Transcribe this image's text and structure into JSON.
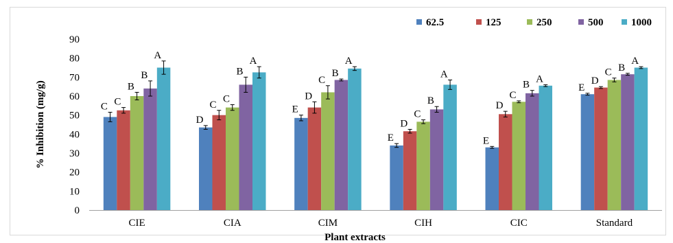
{
  "chart_data": {
    "type": "bar",
    "xlabel": "Plant extracts",
    "ylabel": "% Inhibition (mg/g)",
    "ylim": [
      0,
      90
    ],
    "yticks": [
      "0",
      "10",
      "20",
      "30",
      "40",
      "50",
      "60",
      "70",
      "80",
      "90"
    ],
    "categories": [
      "CIE",
      "CIA",
      "CIM",
      "CIH",
      "CIC",
      "Standard"
    ],
    "legend_position": "top-right",
    "grid": false,
    "series": [
      {
        "name": "62.5",
        "color": "#4f81bd",
        "values": [
          49,
          43.5,
          48.5,
          34,
          33,
          61
        ],
        "errors": [
          2.5,
          1,
          1.5,
          1,
          0.5,
          0.5
        ],
        "letters": [
          "C",
          "D",
          "E",
          "E",
          "E",
          "E"
        ]
      },
      {
        "name": "125",
        "color": "#c0504d",
        "values": [
          52.5,
          50,
          54,
          41.5,
          50.5,
          64.5
        ],
        "errors": [
          1.5,
          2.5,
          3,
          1,
          1.5,
          0.5
        ],
        "letters": [
          "C",
          "C",
          "D",
          "D",
          "D",
          "D"
        ]
      },
      {
        "name": "250",
        "color": "#9bbb59",
        "values": [
          60,
          54,
          62,
          46.5,
          57,
          68.5
        ],
        "errors": [
          2,
          1.5,
          3.5,
          1,
          0.5,
          1
        ],
        "letters": [
          "B",
          "C",
          "C",
          "C",
          "C",
          "C"
        ]
      },
      {
        "name": "500",
        "color": "#8064a2",
        "values": [
          64,
          66,
          68.5,
          53,
          61.5,
          71.5
        ],
        "errors": [
          4,
          4,
          0.5,
          1.5,
          1.5,
          0.5
        ],
        "letters": [
          "B",
          "B",
          "B",
          "B",
          "B",
          "B"
        ]
      },
      {
        "name": "1000",
        "color": "#4bacc6",
        "values": [
          75,
          72.5,
          74.5,
          66,
          65.5,
          75
        ],
        "errors": [
          3.5,
          3,
          1,
          2.5,
          0.5,
          0.5
        ],
        "letters": [
          "A",
          "A",
          "A",
          "A",
          "A",
          "A"
        ]
      }
    ]
  }
}
